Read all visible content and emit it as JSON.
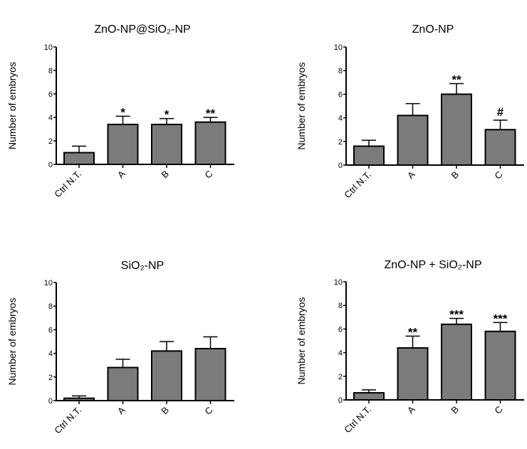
{
  "chart_data": [
    {
      "type": "bar",
      "title": "ZnO-NP@SiO₂-NP",
      "ylabel": "Number of embryos",
      "xlabel": "",
      "ylim": [
        0,
        10
      ],
      "yticks": [
        0,
        2,
        4,
        6,
        8,
        10
      ],
      "categories": [
        "Ctrl N.T.",
        "A",
        "B",
        "C"
      ],
      "values": [
        1.0,
        3.4,
        3.4,
        3.6
      ],
      "error_upper": [
        1.55,
        4.1,
        3.9,
        4.0
      ],
      "annotations": [
        "",
        "*",
        "*",
        "**"
      ],
      "bar_color": "#7b7b7b",
      "grid": false
    },
    {
      "type": "bar",
      "title": "ZnO-NP",
      "ylabel": "Number of embryos",
      "xlabel": "",
      "ylim": [
        0,
        10
      ],
      "yticks": [
        0,
        2,
        4,
        6,
        8,
        10
      ],
      "categories": [
        "Ctrl N.T.",
        "A",
        "B",
        "C"
      ],
      "values": [
        1.6,
        4.2,
        6.0,
        3.0
      ],
      "error_upper": [
        2.1,
        5.2,
        6.9,
        3.8
      ],
      "annotations": [
        "",
        "",
        "**",
        "#"
      ],
      "bar_color": "#7b7b7b",
      "grid": false
    },
    {
      "type": "bar",
      "title": "SiO₂-NP",
      "ylabel": "Number of embryos",
      "xlabel": "",
      "ylim": [
        0,
        10
      ],
      "yticks": [
        0,
        2,
        4,
        6,
        8,
        10
      ],
      "categories": [
        "Ctrl N.T.",
        "A",
        "B",
        "C"
      ],
      "values": [
        0.2,
        2.8,
        4.2,
        4.4
      ],
      "error_upper": [
        0.4,
        3.5,
        5.0,
        5.4
      ],
      "annotations": [
        "",
        "",
        "",
        ""
      ],
      "bar_color": "#7b7b7b",
      "grid": false
    },
    {
      "type": "bar",
      "title": "ZnO-NP  + SiO₂-NP",
      "ylabel": "Number of embryos",
      "xlabel": "",
      "ylim": [
        0,
        10
      ],
      "yticks": [
        0,
        2,
        4,
        6,
        8,
        10
      ],
      "categories": [
        "Ctrl N.T.",
        "A",
        "B",
        "C"
      ],
      "values": [
        0.6,
        4.4,
        6.4,
        5.8
      ],
      "error_upper": [
        0.85,
        5.4,
        6.9,
        6.55
      ],
      "annotations": [
        "",
        "**",
        "***",
        "***"
      ],
      "bar_color": "#7b7b7b",
      "grid": false
    }
  ]
}
